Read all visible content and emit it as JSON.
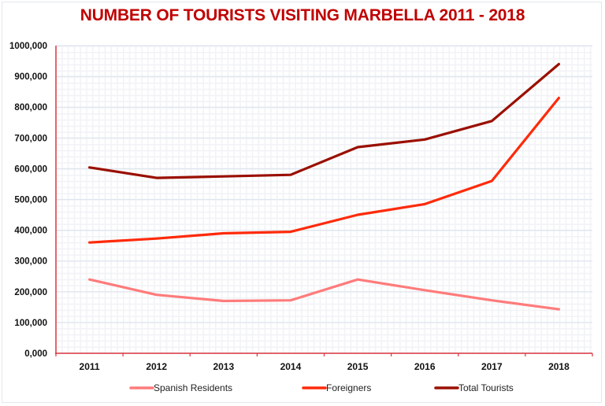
{
  "chart_data": {
    "type": "line",
    "title": "NUMBER OF TOURISTS VISITING MARBELLA 2011 - 2018",
    "xlabel": "",
    "ylabel": "",
    "categories": [
      "2011",
      "2012",
      "2013",
      "2014",
      "2015",
      "2016",
      "2017",
      "2018"
    ],
    "ylim": [
      0,
      1000000
    ],
    "yticks": [
      0,
      100000,
      200000,
      300000,
      400000,
      500000,
      600000,
      700000,
      800000,
      900000,
      1000000
    ],
    "ytick_labels": [
      "0,000",
      "100,000",
      "200,000",
      "300,000",
      "400,000",
      "500,000",
      "600,000",
      "700,000",
      "800,000",
      "900,000",
      "1000,000"
    ],
    "grid": true,
    "legend_position": "bottom",
    "series": [
      {
        "name": "Spanish Residents",
        "color": "#ff7b7b",
        "values": [
          240000,
          190000,
          170000,
          172000,
          240000,
          205000,
          172000,
          143000
        ]
      },
      {
        "name": "Foreigners",
        "color": "#ff2a0a",
        "values": [
          360000,
          373000,
          390000,
          395000,
          450000,
          485000,
          560000,
          830000
        ]
      },
      {
        "name": "Total Tourists",
        "color": "#9a0f00",
        "values": [
          604000,
          570000,
          575000,
          580000,
          670000,
          695000,
          755000,
          940000
        ]
      }
    ]
  },
  "colors": {
    "title": "#c00000",
    "axis": "#d9363e",
    "major_grid": "#dfe5ee",
    "minor_grid": "#f1f3f6"
  }
}
